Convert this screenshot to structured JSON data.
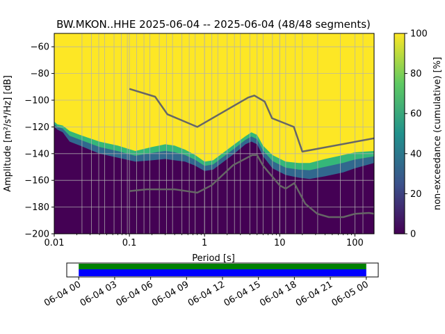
{
  "chart_data": {
    "type": "heatmap",
    "title": "BW.MKON..HHE   2025-06-04 -- 2025-06-04  (48/48 segments)",
    "xlabel": "Period [s]",
    "ylabel": "Amplitude [m²/s⁴/Hz] [dB]",
    "xscale": "log",
    "xlim": [
      0.01,
      180
    ],
    "ylim": [
      -200,
      -50
    ],
    "x_ticks": [
      {
        "value": 0.01,
        "label": "0.01"
      },
      {
        "value": 0.1,
        "label": "0.1"
      },
      {
        "value": 1,
        "label": "1"
      },
      {
        "value": 10,
        "label": "10"
      },
      {
        "value": 100,
        "label": "100"
      }
    ],
    "y_ticks": [
      {
        "value": -60,
        "label": "−60"
      },
      {
        "value": -80,
        "label": "−80"
      },
      {
        "value": -100,
        "label": "−100"
      },
      {
        "value": -120,
        "label": "−120"
      },
      {
        "value": -140,
        "label": "−140"
      },
      {
        "value": -160,
        "label": "−160"
      },
      {
        "value": -180,
        "label": "−180"
      },
      {
        "value": -200,
        "label": "−200"
      }
    ],
    "colorbar": {
      "label": "non-exceedance (cumulative) [%]",
      "range": [
        0,
        100
      ],
      "ticks": [
        {
          "value": 0,
          "label": "0"
        },
        {
          "value": 20,
          "label": "20"
        },
        {
          "value": 40,
          "label": "40"
        },
        {
          "value": 60,
          "label": "60"
        },
        {
          "value": 80,
          "label": "80"
        },
        {
          "value": 100,
          "label": "100"
        }
      ],
      "colors": [
        "#440154",
        "#3b528b",
        "#21918c",
        "#5ec962",
        "#fde725"
      ]
    },
    "psd_transition": {
      "period": [
        0.01,
        0.011,
        0.013,
        0.016,
        0.022,
        0.04,
        0.07,
        0.12,
        0.2,
        0.3,
        0.4,
        0.55,
        0.75,
        1.0,
        1.3,
        1.8,
        2.5,
        3.5,
        4.2,
        5.0,
        6.0,
        8.0,
        12,
        18,
        25,
        40,
        70,
        100,
        180
      ],
      "db_low": [
        -120,
        -122,
        -124,
        -131,
        -134,
        -140,
        -143,
        -146,
        -145,
        -144,
        -145,
        -146,
        -149,
        -153,
        -152,
        -146,
        -140,
        -133,
        -131,
        -133,
        -142,
        -151,
        -156,
        -158,
        -159,
        -157,
        -154,
        -151,
        -147
      ],
      "db_high": [
        -116,
        -118,
        -119,
        -123,
        -126,
        -131,
        -134,
        -138,
        -135,
        -133,
        -134,
        -137,
        -141,
        -146,
        -145,
        -139,
        -133,
        -127,
        -124,
        -126,
        -134,
        -141,
        -146,
        -147,
        -147,
        -144,
        -141,
        -139,
        -138
      ]
    },
    "nhnm": {
      "name": "New High Noise Model",
      "period": [
        0.1,
        0.22,
        0.32,
        0.8,
        3.8,
        4.6,
        6.3,
        7.9,
        15.4,
        20,
        180
      ],
      "db": [
        -91.5,
        -97.4,
        -110.5,
        -120,
        -98,
        -96.5,
        -101,
        -113.5,
        -120,
        -138.5,
        -128.5
      ]
    },
    "nlnm": {
      "name": "New Low Noise Model",
      "period": [
        0.1,
        0.17,
        0.4,
        0.8,
        1.24,
        2.4,
        4.3,
        5.0,
        6.0,
        10,
        12,
        15.6,
        21.9,
        31.6,
        45,
        70,
        101,
        154,
        180
      ],
      "db": [
        -168,
        -166.7,
        -166.7,
        -169.2,
        -163.7,
        -148.6,
        -141.1,
        -141.1,
        -149,
        -163.8,
        -166.2,
        -162.1,
        -177.5,
        -185,
        -187.5,
        -187.5,
        -185,
        -184.4,
        -185
      ]
    },
    "period_grid_lines": [
      0.0234,
      0.0312,
      0.0391,
      0.0469,
      0.0625,
      0.0781,
      0.0938,
      0.125,
      0.1563,
      0.1875,
      0.25,
      0.3125,
      0.375,
      0.5,
      0.625,
      0.75,
      1.0,
      1.25,
      1.5,
      2.0,
      2.5,
      3.0,
      4.0,
      5.0,
      6.0,
      8.0,
      10,
      12,
      16,
      20,
      32,
      64,
      128
    ],
    "time_axis": {
      "labels": [
        "06-04 00",
        "06-04 03",
        "06-04 06",
        "06-04 09",
        "06-04 12",
        "06-04 15",
        "06-04 18",
        "06-04 21",
        "06-05 00"
      ],
      "start_hour": -1,
      "end_hour": 25,
      "data_coverage": [
        0,
        24
      ],
      "processed_coverage": [
        0,
        24
      ]
    }
  }
}
